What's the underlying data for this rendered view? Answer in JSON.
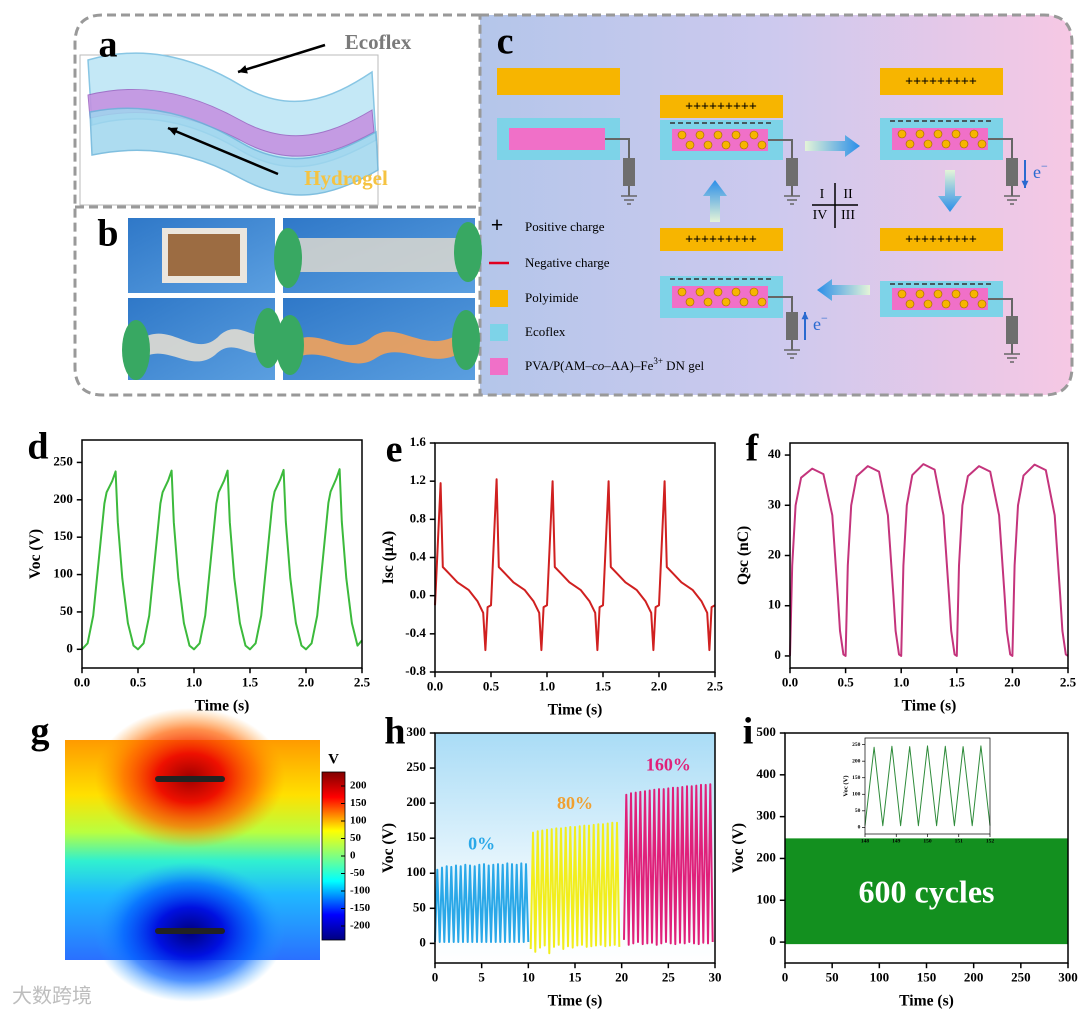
{
  "panels": {
    "a": {
      "label": "a",
      "ecoflex": "Ecoflex",
      "hydrogel": "Hydrogel"
    },
    "b": {
      "label": "b"
    },
    "c": {
      "label": "c",
      "charges": "+++++++++",
      "electron": "e",
      "electron_sup": "−",
      "quadrants": [
        "I",
        "II",
        "III",
        "IV"
      ],
      "legend": [
        {
          "symbol": "+",
          "text": "Positive charge"
        },
        {
          "text": "Negative charge"
        },
        {
          "text": "Polyimide"
        },
        {
          "text": "Ecoflex"
        },
        {
          "text_parts": [
            "PVA/P(AM–",
            "co",
            "–AA)–Fe",
            "3+",
            " DN gel"
          ]
        }
      ]
    }
  },
  "watermark": "大数跨境",
  "chart_data": [
    {
      "type": "line",
      "panel": "d",
      "xlabel": "Time (s)",
      "ylabel": "Voc (V)",
      "xlim": [
        0,
        2.5
      ],
      "xticks": [
        {
          "value": 0,
          "label": "0.0"
        },
        0.5,
        {
          "value": 1,
          "label": "1.0"
        },
        1.5,
        {
          "value": 2,
          "label": "2.0"
        },
        2.5
      ],
      "ylim": [
        -25,
        280
      ],
      "yticks": [
        0,
        50,
        100,
        150,
        200,
        250
      ],
      "x": [
        0,
        0.05,
        0.1,
        0.15,
        0.2,
        0.22,
        0.27,
        0.3,
        0.32,
        0.36,
        0.41,
        0.46,
        0.5,
        0.55,
        0.6,
        0.65,
        0.7,
        0.72,
        0.77,
        0.8,
        0.82,
        0.86,
        0.91,
        0.96,
        1,
        1.05,
        1.1,
        1.15,
        1.2,
        1.22,
        1.27,
        1.3,
        1.32,
        1.36,
        1.41,
        1.46,
        1.5,
        1.55,
        1.6,
        1.65,
        1.7,
        1.72,
        1.77,
        1.8,
        1.82,
        1.86,
        1.91,
        1.96,
        2,
        2.05,
        2.1,
        2.15,
        2.2,
        2.22,
        2.27,
        2.3,
        2.32,
        2.36,
        2.41,
        2.46,
        2.5
      ],
      "series": [
        {
          "color": "#3cba3c",
          "values": [
            0,
            8,
            45,
            120,
            195,
            210,
            225,
            238,
            170,
            95,
            35,
            5,
            0,
            8,
            45,
            120,
            195,
            210,
            226,
            239,
            170,
            95,
            35,
            5,
            0,
            8,
            45,
            120,
            195,
            210,
            226,
            239,
            170,
            95,
            35,
            5,
            0,
            8,
            45,
            120,
            196,
            211,
            227,
            240,
            171,
            95,
            35,
            5,
            0,
            8,
            45,
            120,
            196,
            211,
            228,
            241,
            171,
            95,
            35,
            5,
            12
          ]
        }
      ]
    },
    {
      "type": "line",
      "panel": "e",
      "xlabel": "Time (s)",
      "ylabel": "Isc (μA)",
      "xlim": [
        0,
        2.5
      ],
      "xticks": [
        {
          "value": 0,
          "label": "0.0"
        },
        0.5,
        {
          "value": 1,
          "label": "1.0"
        },
        1.5,
        {
          "value": 2,
          "label": "2.0"
        },
        2.5
      ],
      "ylim": [
        -0.8,
        1.6
      ],
      "yticks": [
        -0.8,
        -0.4,
        {
          "value": 0,
          "label": "0.0"
        },
        0.4,
        0.8,
        1.2,
        1.6
      ],
      "x": [
        0,
        0.05,
        0.07,
        0.12,
        0.2,
        0.3,
        0.38,
        0.43,
        0.45,
        0.47,
        0.5,
        0.55,
        0.57,
        0.62,
        0.7,
        0.8,
        0.88,
        0.93,
        0.95,
        0.97,
        1,
        1.05,
        1.07,
        1.12,
        1.2,
        1.3,
        1.38,
        1.43,
        1.45,
        1.47,
        1.5,
        1.55,
        1.57,
        1.62,
        1.7,
        1.8,
        1.88,
        1.93,
        1.95,
        1.97,
        2,
        2.05,
        2.07,
        2.12,
        2.2,
        2.3,
        2.38,
        2.43,
        2.45,
        2.47,
        2.5
      ],
      "series": [
        {
          "color": "#d02020",
          "values": [
            -0.1,
            1.18,
            0.3,
            0.24,
            0.14,
            0.06,
            -0.06,
            -0.18,
            -0.57,
            -0.12,
            -0.1,
            1.22,
            0.3,
            0.24,
            0.14,
            0.06,
            -0.06,
            -0.18,
            -0.57,
            -0.12,
            -0.1,
            1.2,
            0.3,
            0.24,
            0.14,
            0.06,
            -0.06,
            -0.18,
            -0.57,
            -0.12,
            -0.1,
            1.2,
            0.3,
            0.24,
            0.14,
            0.06,
            -0.06,
            -0.18,
            -0.57,
            -0.12,
            -0.1,
            1.2,
            0.3,
            0.24,
            0.14,
            0.06,
            -0.06,
            -0.18,
            -0.57,
            -0.12,
            -0.1
          ]
        }
      ]
    },
    {
      "type": "line",
      "panel": "f",
      "xlabel": "Time (s)",
      "ylabel": "Qsc (nC)",
      "xlim": [
        0,
        2.5
      ],
      "xticks": [
        {
          "value": 0,
          "label": "0.0"
        },
        0.5,
        {
          "value": 1,
          "label": "1.0"
        },
        1.5,
        {
          "value": 2,
          "label": "2.0"
        },
        2.5
      ],
      "ylim": [
        -2.4,
        42.4
      ],
      "yticks": [
        0,
        10,
        20,
        30,
        40
      ],
      "x": [
        0,
        0.02,
        0.05,
        0.1,
        0.2,
        0.3,
        0.38,
        0.43,
        0.45,
        0.48,
        0.5,
        0.52,
        0.55,
        0.6,
        0.7,
        0.8,
        0.88,
        0.93,
        0.95,
        0.98,
        1,
        1.02,
        1.05,
        1.1,
        1.2,
        1.3,
        1.38,
        1.43,
        1.45,
        1.48,
        1.5,
        1.52,
        1.55,
        1.6,
        1.7,
        1.8,
        1.88,
        1.93,
        1.95,
        1.98,
        2,
        2.02,
        2.05,
        2.1,
        2.2,
        2.3,
        2.38,
        2.43,
        2.45,
        2.48,
        2.5
      ],
      "series": [
        {
          "color": "#c4347c",
          "values": [
            0,
            18,
            30,
            35.5,
            37.3,
            36.2,
            28,
            12,
            5,
            0.3,
            0,
            18,
            30,
            35.8,
            37.8,
            36.7,
            28,
            12,
            5,
            0.3,
            0,
            18,
            30,
            36,
            38.2,
            37.1,
            28,
            12,
            5,
            0.3,
            0,
            18,
            30,
            35.8,
            37.8,
            36.7,
            28,
            12,
            5,
            0.3,
            0,
            18,
            30,
            35.9,
            38.1,
            37,
            28,
            12,
            5,
            0.3,
            0
          ]
        }
      ]
    },
    {
      "type": "heatmap",
      "panel": "g",
      "colorbar_label": "V",
      "clim": [
        -240,
        240
      ],
      "cticks": [
        200,
        150,
        100,
        50,
        0,
        -50,
        -100,
        -150,
        -200
      ]
    },
    {
      "type": "line",
      "panel": "h",
      "xlabel": "Time (s)",
      "ylabel": "Voc (V)",
      "xlim": [
        0,
        30
      ],
      "xticks": [
        0,
        5,
        10,
        15,
        20,
        25,
        30
      ],
      "ylim": [
        -28,
        300
      ],
      "yticks": [
        0,
        50,
        100,
        150,
        200,
        250,
        300
      ],
      "series": [
        {
          "name": "0%",
          "color": "#2aa8e8",
          "label_color": "#2aa8e8",
          "x": [
            0,
            0.25,
            0.5,
            0.75,
            1,
            1.25,
            1.5,
            1.75,
            2,
            2.25,
            2.5,
            2.75,
            3,
            3.25,
            3.5,
            3.75,
            4,
            4.25,
            4.5,
            4.75,
            5,
            5.25,
            5.5,
            5.75,
            6,
            6.25,
            6.5,
            6.75,
            7,
            7.25,
            7.5,
            7.75,
            8,
            8.25,
            8.5,
            8.75,
            9,
            9.25,
            9.5,
            9.75,
            10
          ],
          "values": [
            2,
            105,
            2,
            108,
            2,
            110,
            2,
            109,
            2,
            111,
            2,
            110,
            2,
            112,
            2,
            111,
            2,
            110,
            2,
            112,
            2,
            113,
            2,
            111,
            2,
            112,
            2,
            113,
            2,
            112,
            2,
            114,
            2,
            113,
            2,
            112,
            2,
            114,
            2,
            113,
            2
          ]
        },
        {
          "name": "80%",
          "color": "#f2ee1c",
          "label_color": "#f0a030",
          "x": [
            10.25,
            10.5,
            10.75,
            11,
            11.25,
            11.5,
            11.75,
            12,
            12.25,
            12.5,
            12.75,
            13,
            13.25,
            13.5,
            13.75,
            14,
            14.25,
            14.5,
            14.75,
            15,
            15.25,
            15.5,
            15.75,
            16,
            16.25,
            16.5,
            16.75,
            17,
            17.25,
            17.5,
            17.75,
            18,
            18.25,
            18.5,
            18.75,
            19,
            19.25,
            19.5,
            19.75
          ],
          "values": [
            -8,
            158,
            -12,
            160,
            -6,
            161,
            -3,
            162,
            -14,
            163,
            -5,
            164,
            -2,
            164,
            -8,
            165,
            -4,
            166,
            -6,
            166,
            -3,
            167,
            -2,
            168,
            -5,
            168,
            -4,
            169,
            -3,
            170,
            -2,
            170,
            -4,
            171,
            -3,
            172,
            -2,
            172,
            -5
          ]
        },
        {
          "name": "160%",
          "color": "#e0207a",
          "label_color": "#e0207a",
          "x": [
            20.25,
            20.5,
            20.75,
            21,
            21.25,
            21.5,
            21.75,
            22,
            22.25,
            22.5,
            22.75,
            23,
            23.25,
            23.5,
            23.75,
            24,
            24.25,
            24.5,
            24.75,
            25,
            25.25,
            25.5,
            25.75,
            26,
            26.25,
            26.5,
            26.75,
            27,
            27.25,
            27.5,
            27.75,
            28,
            28.25,
            28.5,
            28.75,
            29,
            29.25,
            29.5,
            29.75
          ],
          "values": [
            5,
            212,
            -2,
            214,
            0,
            215,
            2,
            216,
            -1,
            217,
            0,
            218,
            1,
            219,
            -2,
            220,
            0,
            220,
            2,
            221,
            0,
            222,
            -1,
            222,
            1,
            223,
            0,
            224,
            2,
            224,
            0,
            225,
            -1,
            226,
            1,
            226,
            0,
            227,
            2
          ]
        }
      ]
    },
    {
      "type": "band",
      "panel": "i",
      "xlabel": "Time (s)",
      "ylabel": "Voc (V)",
      "annotation": "600 cycles",
      "xlim": [
        0,
        300
      ],
      "xticks": [
        0,
        50,
        100,
        150,
        200,
        250,
        300
      ],
      "ylim": [
        -50,
        500
      ],
      "yticks": [
        0,
        100,
        200,
        300,
        400,
        500
      ],
      "color": "#13901f",
      "x": [
        0,
        300
      ],
      "values": [
        248,
        248
      ],
      "lower": [
        -5,
        -5
      ],
      "inset": {
        "type": "line",
        "ylabel": "Voc (V)",
        "xlim": [
          148,
          152
        ],
        "xticks": [
          148,
          149,
          150,
          151,
          152
        ],
        "ylim": [
          -20,
          270
        ],
        "yticks": [
          0,
          50,
          100,
          150,
          200,
          250
        ],
        "x": [
          148,
          148.29,
          148.57,
          148.86,
          149.14,
          149.43,
          149.71,
          150,
          150.29,
          150.57,
          150.86,
          151.14,
          151.43,
          151.71,
          152
        ],
        "series": [
          {
            "color": "#2e8b3a",
            "values": [
              5,
              242,
              5,
              245,
              5,
              244,
              5,
              246,
              5,
              245,
              5,
              244,
              5,
              246,
              5
            ]
          }
        ]
      }
    }
  ]
}
